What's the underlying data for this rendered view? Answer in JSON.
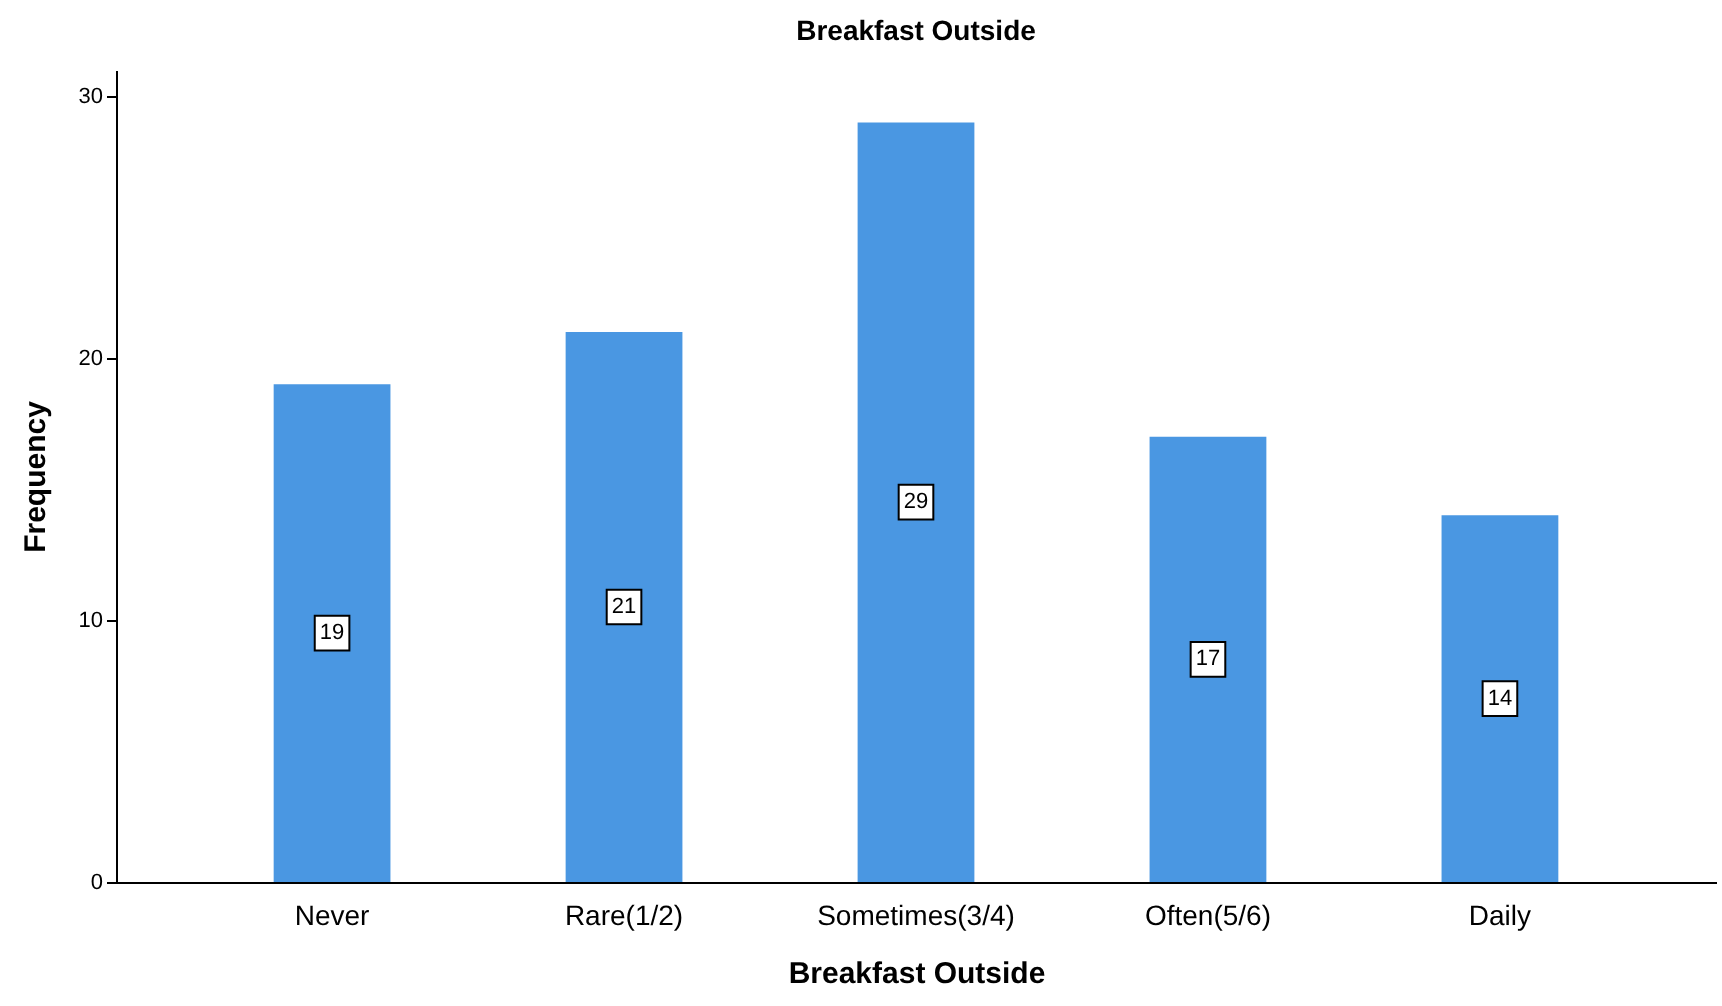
{
  "chart_data": {
    "type": "bar",
    "title": "Breakfast Outside",
    "xlabel": "Breakfast Outside",
    "ylabel": "Frequency",
    "categories": [
      "Never",
      "Rare(1/2)",
      "Sometimes(3/4)",
      "Often(5/6)",
      "Daily"
    ],
    "values": [
      19,
      21,
      29,
      17,
      14
    ],
    "color": "#4a97e2",
    "ylim": [
      0,
      31
    ],
    "yticks": [
      0,
      10,
      20,
      30
    ],
    "grid": false,
    "data_labels": true
  }
}
